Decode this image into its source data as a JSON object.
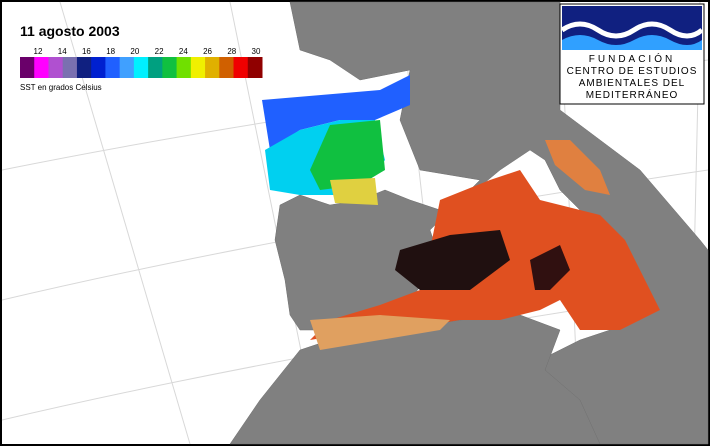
{
  "header": {
    "title": "11 agosto 2003"
  },
  "legend": {
    "ticks": [
      12,
      14,
      16,
      18,
      20,
      22,
      24,
      26,
      28,
      30
    ],
    "colors": [
      "#6a006a",
      "#ff00ff",
      "#b050d0",
      "#7a70b0",
      "#102080",
      "#0020d0",
      "#2060ff",
      "#40a0ff",
      "#00f0ff",
      "#00a080",
      "#10c040",
      "#70e000",
      "#f0f000",
      "#e0b000",
      "#d06000",
      "#f00000",
      "#900000"
    ],
    "label": "SST en grados Celsius"
  },
  "logo": {
    "lines": [
      "FUNDACIÓN",
      "CENTRO DE ESTUDIOS",
      "AMBIENTALES DEL",
      "MEDITERRÁNEO"
    ]
  }
}
